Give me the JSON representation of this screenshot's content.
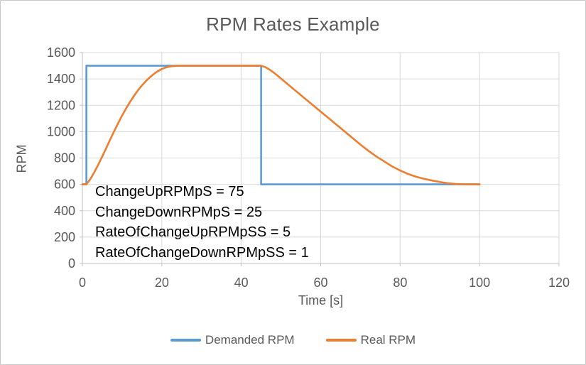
{
  "frame": {
    "background": "#ffffff",
    "border_color": "#c9c9c9"
  },
  "colors": {
    "title_text": "#595959",
    "axis_text": "#595959",
    "gridline": "#d9d9d9",
    "axis_line": "#bfbfbf",
    "annotation_text": "#000000"
  },
  "chart_data": {
    "type": "line",
    "title": "RPM Rates Example",
    "xlabel": "Time [s]",
    "ylabel": "RPM",
    "xlim": [
      0,
      120
    ],
    "ylim": [
      0,
      1600
    ],
    "xticks": [
      0,
      20,
      40,
      60,
      80,
      100,
      120
    ],
    "yticks": [
      0,
      200,
      400,
      600,
      800,
      1000,
      1200,
      1400,
      1600
    ],
    "grid": true,
    "legend_position": "bottom",
    "annotations": [
      "ChangeUpRPMpS = 75",
      "ChangeDownRPMpS = 25",
      "RateOfChangeUpRPMpSS = 5",
      "RateOfChangeDownRPMpSS = 1"
    ],
    "series": [
      {
        "name": "Demanded RPM",
        "color": "#5B9BD5",
        "points": [
          [
            0,
            600
          ],
          [
            1,
            600
          ],
          [
            1,
            1500
          ],
          [
            45,
            1500
          ],
          [
            45,
            600
          ],
          [
            100,
            600
          ]
        ]
      },
      {
        "name": "Real RPM",
        "color": "#ED7D31",
        "points": [
          [
            0,
            600
          ],
          [
            1,
            600
          ],
          [
            2,
            640
          ],
          [
            3,
            692
          ],
          [
            4,
            750
          ],
          [
            5,
            812
          ],
          [
            6,
            876
          ],
          [
            7,
            940
          ],
          [
            8,
            1003
          ],
          [
            9,
            1064
          ],
          [
            10,
            1122
          ],
          [
            11,
            1176
          ],
          [
            12,
            1226
          ],
          [
            13,
            1272
          ],
          [
            14,
            1314
          ],
          [
            15,
            1351
          ],
          [
            16,
            1384
          ],
          [
            17,
            1413
          ],
          [
            18,
            1438
          ],
          [
            19,
            1459
          ],
          [
            20,
            1475
          ],
          [
            21,
            1487
          ],
          [
            22,
            1494
          ],
          [
            23,
            1498
          ],
          [
            24,
            1500
          ],
          [
            45,
            1500
          ],
          [
            46,
            1490
          ],
          [
            47,
            1473
          ],
          [
            48,
            1452
          ],
          [
            49,
            1428
          ],
          [
            50,
            1403
          ],
          [
            52,
            1352
          ],
          [
            54,
            1302
          ],
          [
            56,
            1252
          ],
          [
            58,
            1202
          ],
          [
            60,
            1152
          ],
          [
            62,
            1102
          ],
          [
            64,
            1052
          ],
          [
            66,
            1002
          ],
          [
            68,
            952
          ],
          [
            70,
            902
          ],
          [
            72,
            855
          ],
          [
            74,
            812
          ],
          [
            76,
            774
          ],
          [
            78,
            736
          ],
          [
            80,
            705
          ],
          [
            82,
            679
          ],
          [
            84,
            658
          ],
          [
            86,
            642
          ],
          [
            88,
            629
          ],
          [
            90,
            618
          ],
          [
            92,
            609
          ],
          [
            94,
            603
          ],
          [
            96,
            600
          ],
          [
            98,
            600
          ],
          [
            100,
            600
          ]
        ]
      }
    ]
  }
}
